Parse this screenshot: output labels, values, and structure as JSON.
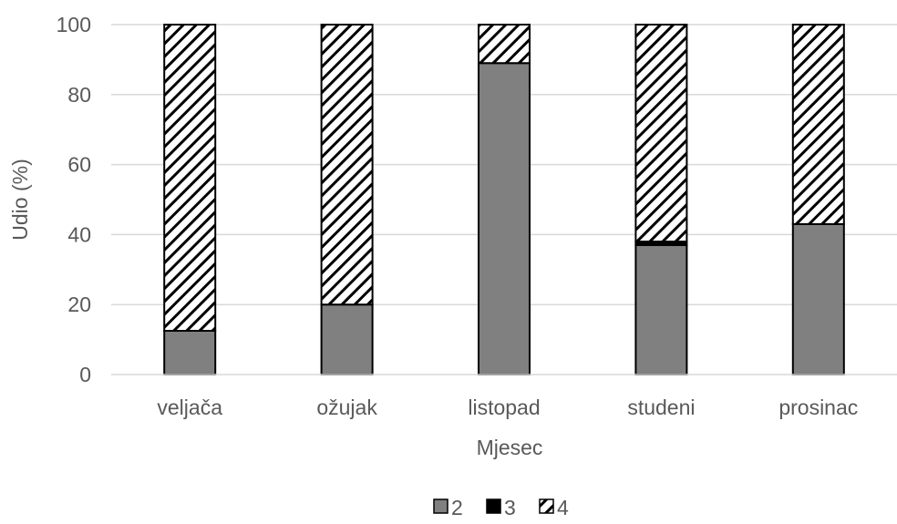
{
  "chart_data": {
    "type": "bar",
    "stacked": true,
    "xlabel": "Mjesec",
    "ylabel": "Udio (%)",
    "ylim": [
      0,
      100
    ],
    "yticks": [
      0,
      20,
      40,
      60,
      80,
      100
    ],
    "grid": true,
    "legend_position": "bottom",
    "categories": [
      "veljača",
      "ožujak",
      "listopad",
      "studeni",
      "prosinac"
    ],
    "series": [
      {
        "name": "2",
        "color": "#808080",
        "pattern": "solid",
        "values": [
          12.5,
          20,
          89,
          37,
          43
        ]
      },
      {
        "name": "3",
        "color": "#000000",
        "pattern": "solid",
        "values": [
          0,
          0,
          0,
          1,
          0
        ]
      },
      {
        "name": "4",
        "color": "#000000",
        "pattern": "diagonal-hatch",
        "values": [
          87.5,
          80,
          11,
          62,
          57
        ]
      }
    ]
  }
}
